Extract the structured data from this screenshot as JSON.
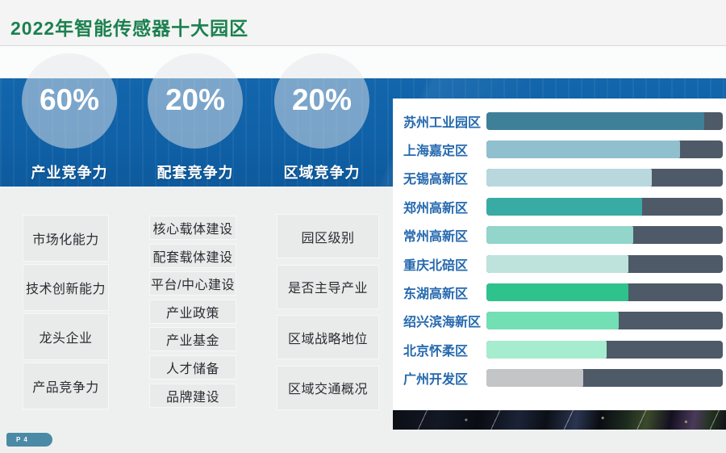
{
  "slide": {
    "title": "2022年智能传感器十大园区",
    "page_label": "P 4"
  },
  "weights": [
    {
      "pct": "60%",
      "label": "产业竞争力",
      "items": [
        "市场化能力",
        "技术创新能力",
        "龙头企业",
        "产品竞争力"
      ]
    },
    {
      "pct": "20%",
      "label": "配套竞争力",
      "items": [
        "核心载体建设",
        "配套载体建设",
        "平台/中心建设",
        "产业政策",
        "产业基金",
        "人才储备",
        "品牌建设"
      ]
    },
    {
      "pct": "20%",
      "label": "区域竞争力",
      "items": [
        "园区级别",
        "是否主导产业",
        "区域战略地位",
        "区域交通概况"
      ]
    }
  ],
  "chart_data": {
    "type": "bar",
    "orientation": "horizontal",
    "title": "2022年智能传感器十大园区",
    "categories": [
      "苏州工业园区",
      "上海嘉定区",
      "无锡高新区",
      "郑州高新区",
      "常州高新区",
      "重庆北碚区",
      "东湖高新区",
      "绍兴滨海新区",
      "北京怀柔区",
      "广州开发区"
    ],
    "values": [
      92,
      82,
      70,
      66,
      62,
      60,
      60,
      56,
      51,
      41
    ],
    "max": 100,
    "bar_colors": [
      "#3f8099",
      "#90bfcd",
      "#b9d8de",
      "#38aba4",
      "#92d5ca",
      "#bee3dc",
      "#2ec28d",
      "#73dfb4",
      "#a6ecce",
      "#c3c5c7"
    ],
    "remainder_color": "#4e5a67",
    "label_color": "#2569ae",
    "legend": [],
    "grid": false
  },
  "colors": {
    "title_green": "#1c8050",
    "band_blue": "#1061a7",
    "panel_bg": "#ffffff",
    "box_bg": "#e9ebea",
    "badge_teal": "#4a8aa6"
  }
}
